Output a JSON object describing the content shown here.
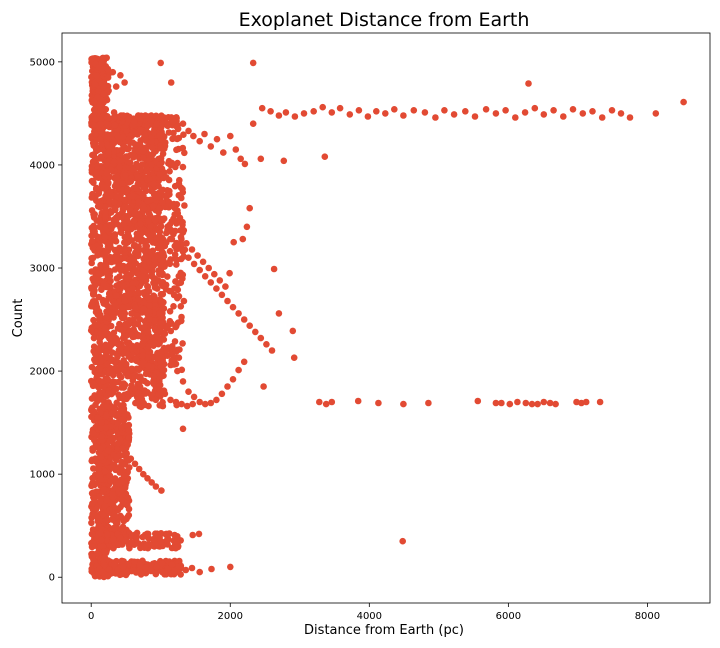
{
  "chart_data": {
    "type": "scatter",
    "title": "Exoplanet Distance from Earth",
    "xlabel": "Distance from Earth (pc)",
    "ylabel": "Count",
    "xlim": [
      -420,
      8900
    ],
    "ylim": [
      -250,
      5280
    ],
    "xticks": [
      0,
      2000,
      4000,
      6000,
      8000
    ],
    "yticks": [
      0,
      1000,
      2000,
      3000,
      4000,
      5000
    ],
    "grid": false,
    "marker_color": "#e24a33",
    "points": [
      [
        20,
        5010
      ],
      [
        60,
        4980
      ],
      [
        110,
        4950
      ],
      [
        150,
        4990
      ],
      [
        240,
        4930
      ],
      [
        310,
        4900
      ],
      [
        420,
        4870
      ],
      [
        480,
        4800
      ],
      [
        360,
        4760
      ],
      [
        250,
        4720
      ],
      [
        180,
        4690
      ],
      [
        90,
        4660
      ],
      [
        40,
        4620
      ],
      [
        130,
        4580
      ],
      [
        210,
        4540
      ],
      [
        330,
        4510
      ],
      [
        460,
        4480
      ],
      [
        540,
        4440
      ],
      [
        620,
        4420
      ],
      [
        700,
        4450
      ],
      [
        780,
        4480
      ],
      [
        860,
        4430
      ],
      [
        940,
        4400
      ],
      [
        1020,
        4460
      ],
      [
        1100,
        4380
      ],
      [
        1180,
        4420
      ],
      [
        1250,
        4350
      ],
      [
        1320,
        4400
      ],
      [
        1400,
        4330
      ],
      [
        1470,
        4280
      ],
      [
        1560,
        4230
      ],
      [
        1630,
        4300
      ],
      [
        1720,
        4180
      ],
      [
        1810,
        4250
      ],
      [
        1900,
        4120
      ],
      [
        2000,
        4280
      ],
      [
        2080,
        4150
      ],
      [
        2150,
        4060
      ],
      [
        2210,
        4010
      ],
      [
        2330,
        4400
      ],
      [
        2460,
        4550
      ],
      [
        2580,
        4520
      ],
      [
        2700,
        4480
      ],
      [
        2800,
        4510
      ],
      [
        2930,
        4470
      ],
      [
        3060,
        4500
      ],
      [
        3200,
        4520
      ],
      [
        3330,
        4560
      ],
      [
        3460,
        4510
      ],
      [
        3580,
        4550
      ],
      [
        3720,
        4490
      ],
      [
        3850,
        4530
      ],
      [
        3980,
        4470
      ],
      [
        4100,
        4520
      ],
      [
        4230,
        4500
      ],
      [
        4360,
        4540
      ],
      [
        4490,
        4480
      ],
      [
        4640,
        4530
      ],
      [
        4800,
        4510
      ],
      [
        4950,
        4460
      ],
      [
        5080,
        4530
      ],
      [
        5220,
        4490
      ],
      [
        5380,
        4520
      ],
      [
        5520,
        4470
      ],
      [
        5680,
        4540
      ],
      [
        5820,
        4500
      ],
      [
        5960,
        4530
      ],
      [
        6100,
        4460
      ],
      [
        6240,
        4510
      ],
      [
        6380,
        4550
      ],
      [
        6510,
        4490
      ],
      [
        6650,
        4530
      ],
      [
        6790,
        4470
      ],
      [
        6930,
        4540
      ],
      [
        7070,
        4500
      ],
      [
        7210,
        4520
      ],
      [
        7350,
        4460
      ],
      [
        7490,
        4530
      ],
      [
        7620,
        4500
      ],
      [
        7750,
        4460
      ],
      [
        8120,
        4500
      ],
      [
        8520,
        4610
      ],
      [
        6290,
        4790
      ],
      [
        2330,
        4990
      ],
      [
        1000,
        4990
      ],
      [
        1150,
        4800
      ],
      [
        30,
        4210
      ],
      [
        80,
        4150
      ],
      [
        140,
        4080
      ],
      [
        220,
        4010
      ],
      [
        290,
        3950
      ],
      [
        370,
        3880
      ],
      [
        450,
        3820
      ],
      [
        520,
        3760
      ],
      [
        600,
        3700
      ],
      [
        680,
        3640
      ],
      [
        760,
        3580
      ],
      [
        840,
        3520
      ],
      [
        920,
        3460
      ],
      [
        1000,
        3400
      ],
      [
        1080,
        3340
      ],
      [
        1160,
        3280
      ],
      [
        1240,
        3220
      ],
      [
        1320,
        3160
      ],
      [
        1400,
        3100
      ],
      [
        1480,
        3040
      ],
      [
        1560,
        2980
      ],
      [
        1640,
        2920
      ],
      [
        1720,
        2860
      ],
      [
        1800,
        2800
      ],
      [
        1880,
        2740
      ],
      [
        1960,
        2680
      ],
      [
        2040,
        2620
      ],
      [
        2120,
        2560
      ],
      [
        2200,
        2500
      ],
      [
        2280,
        2440
      ],
      [
        2360,
        2380
      ],
      [
        2440,
        2320
      ],
      [
        2520,
        2260
      ],
      [
        2600,
        2200
      ],
      [
        2700,
        2560
      ],
      [
        2630,
        2990
      ],
      [
        2900,
        2390
      ],
      [
        2920,
        2130
      ],
      [
        2480,
        1850
      ],
      [
        2280,
        3580
      ],
      [
        2240,
        3400
      ],
      [
        2180,
        3280
      ],
      [
        2050,
        3250
      ],
      [
        1990,
        2950
      ],
      [
        60,
        4300
      ],
      [
        150,
        4200
      ],
      [
        250,
        4120
      ],
      [
        330,
        4030
      ],
      [
        410,
        3980
      ],
      [
        490,
        3900
      ],
      [
        570,
        3840
      ],
      [
        650,
        3770
      ],
      [
        730,
        3720
      ],
      [
        810,
        3650
      ],
      [
        890,
        3600
      ],
      [
        970,
        3540
      ],
      [
        1050,
        3480
      ],
      [
        1130,
        3420
      ],
      [
        1210,
        3360
      ],
      [
        1290,
        3300
      ],
      [
        1370,
        3240
      ],
      [
        1450,
        3180
      ],
      [
        1530,
        3120
      ],
      [
        1610,
        3060
      ],
      [
        1690,
        3000
      ],
      [
        1770,
        2940
      ],
      [
        1850,
        2880
      ],
      [
        1930,
        2820
      ],
      [
        40,
        3500
      ],
      [
        120,
        3400
      ],
      [
        200,
        3300
      ],
      [
        280,
        3200
      ],
      [
        360,
        3100
      ],
      [
        440,
        3000
      ],
      [
        520,
        2900
      ],
      [
        600,
        2800
      ],
      [
        680,
        2700
      ],
      [
        760,
        2600
      ],
      [
        840,
        2500
      ],
      [
        920,
        2400
      ],
      [
        1000,
        2300
      ],
      [
        1080,
        2200
      ],
      [
        1160,
        2100
      ],
      [
        1240,
        2000
      ],
      [
        1320,
        1900
      ],
      [
        1400,
        1800
      ],
      [
        1480,
        1750
      ],
      [
        1560,
        1700
      ],
      [
        1640,
        1680
      ],
      [
        1720,
        1690
      ],
      [
        1800,
        1720
      ],
      [
        1880,
        1780
      ],
      [
        1960,
        1850
      ],
      [
        2040,
        1920
      ],
      [
        2120,
        2010
      ],
      [
        2200,
        2090
      ],
      [
        100,
        2950
      ],
      [
        180,
        2850
      ],
      [
        260,
        2750
      ],
      [
        340,
        2650
      ],
      [
        420,
        2550
      ],
      [
        500,
        2450
      ],
      [
        580,
        2350
      ],
      [
        660,
        2250
      ],
      [
        740,
        2150
      ],
      [
        820,
        2050
      ],
      [
        900,
        1950
      ],
      [
        980,
        1850
      ],
      [
        1060,
        1780
      ],
      [
        1140,
        1720
      ],
      [
        1220,
        1700
      ],
      [
        1300,
        1680
      ],
      [
        1380,
        1660
      ],
      [
        1460,
        1680
      ],
      [
        30,
        1600
      ],
      [
        90,
        1550
      ],
      [
        150,
        1500
      ],
      [
        210,
        1450
      ],
      [
        270,
        1400
      ],
      [
        330,
        1350
      ],
      [
        390,
        1300
      ],
      [
        450,
        1250
      ],
      [
        510,
        1200
      ],
      [
        570,
        1150
      ],
      [
        630,
        1100
      ],
      [
        690,
        1050
      ],
      [
        750,
        1000
      ],
      [
        810,
        960
      ],
      [
        870,
        920
      ],
      [
        930,
        880
      ],
      [
        1010,
        840
      ],
      [
        1320,
        1440
      ],
      [
        1230,
        1670
      ],
      [
        20,
        1250
      ],
      [
        60,
        1150
      ],
      [
        100,
        1050
      ],
      [
        140,
        950
      ],
      [
        180,
        850
      ],
      [
        220,
        750
      ],
      [
        260,
        650
      ],
      [
        300,
        560
      ],
      [
        340,
        470
      ],
      [
        380,
        420
      ],
      [
        420,
        380
      ],
      [
        500,
        360
      ],
      [
        580,
        400
      ],
      [
        660,
        430
      ],
      [
        740,
        390
      ],
      [
        820,
        420
      ],
      [
        900,
        370
      ],
      [
        1000,
        350
      ],
      [
        1100,
        380
      ],
      [
        1200,
        410
      ],
      [
        1460,
        410
      ],
      [
        1550,
        420
      ],
      [
        10,
        900
      ],
      [
        30,
        820
      ],
      [
        50,
        740
      ],
      [
        70,
        660
      ],
      [
        90,
        580
      ],
      [
        110,
        500
      ],
      [
        130,
        430
      ],
      [
        150,
        360
      ],
      [
        170,
        300
      ],
      [
        190,
        250
      ],
      [
        10,
        200
      ],
      [
        40,
        150
      ],
      [
        80,
        110
      ],
      [
        120,
        80
      ],
      [
        160,
        50
      ],
      [
        200,
        20
      ],
      [
        240,
        10
      ],
      [
        300,
        40
      ],
      [
        380,
        70
      ],
      [
        460,
        100
      ],
      [
        540,
        130
      ],
      [
        620,
        150
      ],
      [
        700,
        120
      ],
      [
        780,
        90
      ],
      [
        860,
        60
      ],
      [
        940,
        100
      ],
      [
        1020,
        130
      ],
      [
        1100,
        80
      ],
      [
        1200,
        60
      ],
      [
        1290,
        110
      ],
      [
        1360,
        70
      ],
      [
        1450,
        90
      ],
      [
        1560,
        50
      ],
      [
        1730,
        80
      ],
      [
        2000,
        100
      ],
      [
        3280,
        1700
      ],
      [
        3380,
        1680
      ],
      [
        3460,
        1700
      ],
      [
        3840,
        1710
      ],
      [
        4130,
        1690
      ],
      [
        4490,
        1680
      ],
      [
        4850,
        1690
      ],
      [
        5560,
        1710
      ],
      [
        5820,
        1690
      ],
      [
        5900,
        1690
      ],
      [
        6020,
        1680
      ],
      [
        6130,
        1700
      ],
      [
        6250,
        1690
      ],
      [
        6340,
        1680
      ],
      [
        6420,
        1680
      ],
      [
        6510,
        1700
      ],
      [
        6600,
        1690
      ],
      [
        6680,
        1680
      ],
      [
        6980,
        1700
      ],
      [
        7050,
        1690
      ],
      [
        7120,
        1700
      ],
      [
        7320,
        1700
      ],
      [
        4480,
        350
      ],
      [
        3360,
        4080
      ],
      [
        2770,
        4040
      ],
      [
        2440,
        4060
      ]
    ],
    "dense_regions": [
      {
        "x": [
          0,
          250
        ],
        "y": [
          0,
          5050
        ],
        "n": 700
      },
      {
        "x": [
          100,
          550
        ],
        "y": [
          300,
          1650
        ],
        "n": 380
      },
      {
        "x": [
          200,
          1050
        ],
        "y": [
          1650,
          4450
        ],
        "n": 1100
      },
      {
        "x": [
          450,
          1350
        ],
        "y": [
          2000,
          4400
        ],
        "n": 450
      },
      {
        "x": [
          0,
          1250
        ],
        "y": [
          4380,
          4480
        ],
        "n": 160
      },
      {
        "x": [
          0,
          1300
        ],
        "y": [
          20,
          160
        ],
        "n": 160
      },
      {
        "x": [
          0,
          1300
        ],
        "y": [
          280,
          430
        ],
        "n": 110
      },
      {
        "x": [
          0,
          200
        ],
        "y": [
          4600,
          5040
        ],
        "n": 120
      }
    ]
  }
}
